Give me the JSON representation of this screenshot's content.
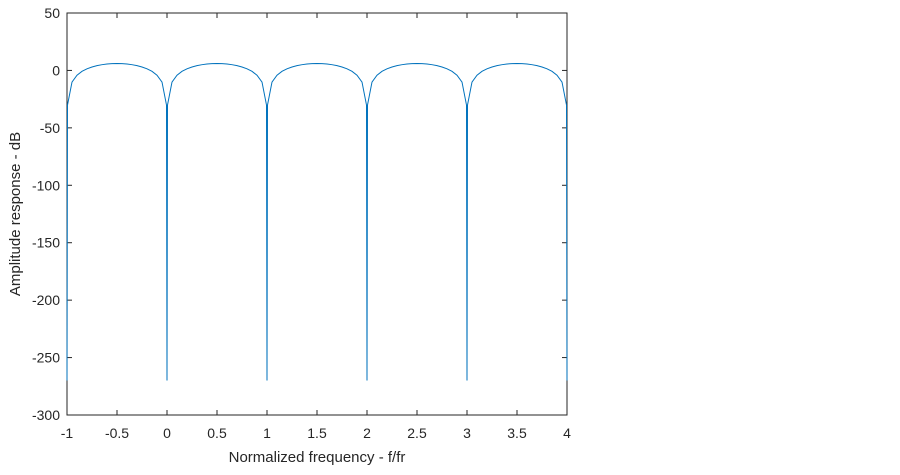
{
  "chart_data": {
    "type": "line",
    "xlabel": "Normalized frequency - f/fr",
    "ylabel": "Amplitude response - dB",
    "x": [
      -1,
      -0.995,
      -0.95,
      -0.9,
      -0.85,
      -0.8,
      -0.75,
      -0.7,
      -0.65,
      -0.6,
      -0.55,
      -0.5,
      -0.45,
      -0.4,
      -0.35,
      -0.3,
      -0.25,
      -0.2,
      -0.15,
      -0.1,
      -0.05,
      -0.005,
      0,
      0.005,
      0.05,
      0.1,
      0.15,
      0.2,
      0.25,
      0.3,
      0.35,
      0.4,
      0.45,
      0.5,
      0.55,
      0.6,
      0.65,
      0.7,
      0.75,
      0.8,
      0.85,
      0.9,
      0.95,
      0.995,
      1,
      1.005,
      1.05,
      1.1,
      1.15,
      1.2,
      1.25,
      1.3,
      1.35,
      1.4,
      1.45,
      1.5,
      1.55,
      1.6,
      1.65,
      1.7,
      1.75,
      1.8,
      1.85,
      1.9,
      1.95,
      1.995,
      2,
      2.005,
      2.05,
      2.1,
      2.15,
      2.2,
      2.25,
      2.3,
      2.35,
      2.4,
      2.45,
      2.5,
      2.55,
      2.6,
      2.65,
      2.7,
      2.75,
      2.8,
      2.85,
      2.9,
      2.95,
      2.995,
      3,
      3.005,
      3.05,
      3.1,
      3.15,
      3.2,
      3.25,
      3.3,
      3.35,
      3.4,
      3.45,
      3.5,
      3.55,
      3.6,
      3.65,
      3.7,
      3.75,
      3.8,
      3.85,
      3.9,
      3.95,
      3.995,
      4
    ],
    "series": [
      {
        "color": "#0072bd",
        "values": [
          -270,
          -30.1,
          -10.1,
          -4.2,
          -0.8,
          1.4,
          3.0,
          4.2,
          5.0,
          5.6,
          5.9,
          6.0,
          5.9,
          5.6,
          5.0,
          4.2,
          3.0,
          1.4,
          -0.8,
          -4.2,
          -10.1,
          -30.1,
          -270,
          -30.1,
          -10.1,
          -4.2,
          -0.8,
          1.4,
          3.0,
          4.2,
          5.0,
          5.6,
          5.9,
          6.0,
          5.9,
          5.6,
          5.0,
          4.2,
          3.0,
          1.4,
          -0.8,
          -4.2,
          -10.1,
          -30.1,
          -270,
          -30.1,
          -10.1,
          -4.2,
          -0.8,
          1.4,
          3.0,
          4.2,
          5.0,
          5.6,
          5.9,
          6.0,
          5.9,
          5.6,
          5.0,
          4.2,
          3.0,
          1.4,
          -0.8,
          -4.2,
          -10.1,
          -30.1,
          -270,
          -30.1,
          -10.1,
          -4.2,
          -0.8,
          1.4,
          3.0,
          4.2,
          5.0,
          5.6,
          5.9,
          6.0,
          5.9,
          5.6,
          5.0,
          4.2,
          3.0,
          1.4,
          -0.8,
          -4.2,
          -10.1,
          -30.1,
          -270,
          -30.1,
          -10.1,
          -4.2,
          -0.8,
          1.4,
          3.0,
          4.2,
          5.0,
          5.6,
          5.9,
          6.0,
          5.9,
          5.6,
          5.0,
          4.2,
          3.0,
          1.4,
          -0.8,
          -4.2,
          -10.1,
          -30.1,
          -270
        ]
      }
    ],
    "xlim": [
      -1,
      4
    ],
    "xticks": [
      -1,
      -0.5,
      0,
      0.5,
      1,
      1.5,
      2,
      2.5,
      3,
      3.5,
      4
    ],
    "ylim": [
      -300,
      50
    ],
    "yticks": [
      -300,
      -250,
      -200,
      -150,
      -100,
      -50,
      0,
      50
    ]
  }
}
